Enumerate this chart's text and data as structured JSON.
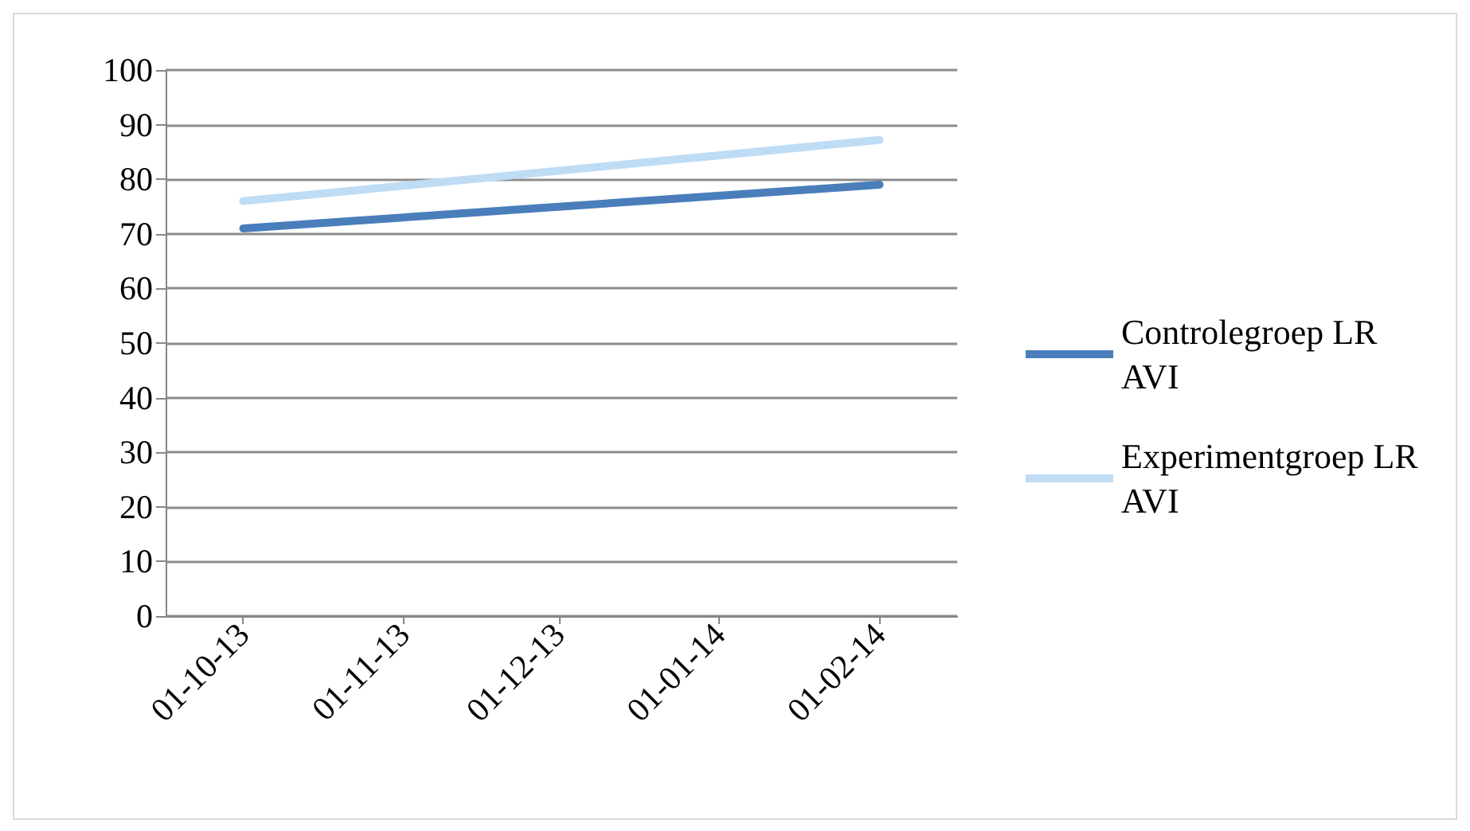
{
  "chart_data": {
    "type": "line",
    "x": [
      "2013-10-01",
      "2014-02-01"
    ],
    "xlim": [
      "2013-09-16",
      "2014-02-16"
    ],
    "xticks": [
      {
        "value": "2013-10-01",
        "label": "01-10-13"
      },
      {
        "value": "2013-11-01",
        "label": "01-11-13"
      },
      {
        "value": "2013-12-01",
        "label": "01-12-13"
      },
      {
        "value": "2014-01-01",
        "label": "01-01-14"
      },
      {
        "value": "2014-02-01",
        "label": "01-02-14"
      }
    ],
    "ylim": [
      0,
      100
    ],
    "yticks": [
      0,
      10,
      20,
      30,
      40,
      50,
      60,
      70,
      80,
      90,
      100
    ],
    "grid": "y",
    "legend": "right",
    "marker": "none",
    "line_style": "solid",
    "series": [
      {
        "name": "Controlegroep LR AVI",
        "color": "#4a7ebb",
        "values": [
          71,
          79
        ]
      },
      {
        "name": "Experimentgroep LR AVI",
        "color": "#bfdcf5",
        "values": [
          76,
          87.2
        ]
      }
    ]
  }
}
